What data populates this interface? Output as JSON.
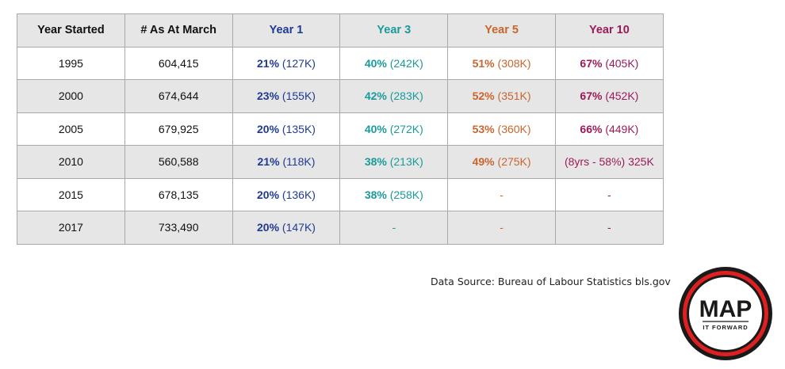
{
  "chart_data": {
    "type": "table",
    "columns": [
      {
        "label": "Year Started",
        "color": "#111111"
      },
      {
        "label": "# As At March",
        "color": "#111111"
      },
      {
        "label": "Year 1",
        "color": "#1f3a93"
      },
      {
        "label": "Year 3",
        "color": "#1a9a9a"
      },
      {
        "label": "Year 5",
        "color": "#c9652e"
      },
      {
        "label": "Year 10",
        "color": "#9b1b5a"
      }
    ],
    "rows": [
      {
        "year": "1995",
        "count": "604,415",
        "cells": [
          {
            "pct": "21%",
            "rest": " (127K)"
          },
          {
            "pct": "40%",
            "rest": " (242K)"
          },
          {
            "pct": "51%",
            "rest": " (308K)"
          },
          {
            "pct": "67%",
            "rest": " (405K)"
          }
        ]
      },
      {
        "year": "2000",
        "count": "674,644",
        "cells": [
          {
            "pct": "23%",
            "rest": " (155K)"
          },
          {
            "pct": "42%",
            "rest": " (283K)"
          },
          {
            "pct": "52%",
            "rest": " (351K)"
          },
          {
            "pct": "67%",
            "rest": " (452K)"
          }
        ]
      },
      {
        "year": "2005",
        "count": "679,925",
        "cells": [
          {
            "pct": "20%",
            "rest": " (135K)"
          },
          {
            "pct": "40%",
            "rest": " (272K)"
          },
          {
            "pct": "53%",
            "rest": " (360K)"
          },
          {
            "pct": "66%",
            "rest": " (449K)"
          }
        ]
      },
      {
        "year": "2010",
        "count": "560,588",
        "cells": [
          {
            "pct": "21%",
            "rest": " (118K)"
          },
          {
            "pct": "38%",
            "rest": " (213K)"
          },
          {
            "pct": "49%",
            "rest": " (275K)"
          },
          {
            "pct": "",
            "rest": "(8yrs - 58%) 325K"
          }
        ]
      },
      {
        "year": "2015",
        "count": "678,135",
        "cells": [
          {
            "pct": "20%",
            "rest": " (136K)"
          },
          {
            "pct": "38%",
            "rest": " (258K)"
          },
          {
            "pct": "",
            "rest": "-"
          },
          {
            "pct": "",
            "rest": "-"
          }
        ]
      },
      {
        "year": "2017",
        "count": "733,490",
        "cells": [
          {
            "pct": "20%",
            "rest": " (147K)"
          },
          {
            "pct": "",
            "rest": "-"
          },
          {
            "pct": "",
            "rest": "-"
          },
          {
            "pct": "",
            "rest": "-"
          }
        ]
      }
    ]
  },
  "source_text": "Data Source: Bureau of Labour Statistics bls.gov",
  "logo": {
    "main": "MAP",
    "sub": "IT FORWARD",
    "ring_color": "#e02020"
  }
}
